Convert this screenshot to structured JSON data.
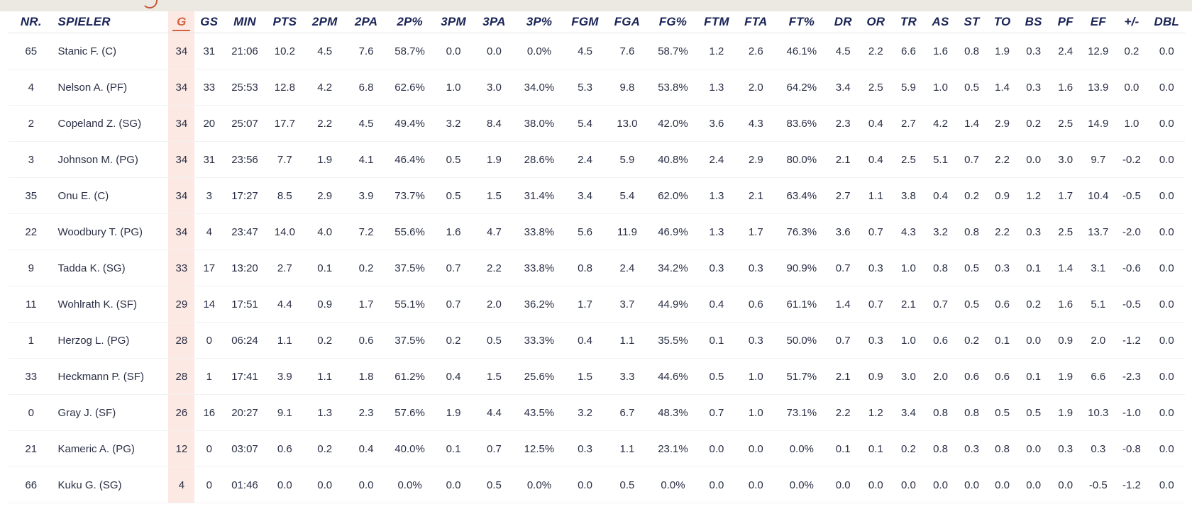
{
  "columns": [
    "NR.",
    "SPIELER",
    "G",
    "GS",
    "MIN",
    "PTS",
    "2PM",
    "2PA",
    "2P%",
    "3PM",
    "3PA",
    "3P%",
    "FGM",
    "FGA",
    "FG%",
    "FTM",
    "FTA",
    "FT%",
    "DR",
    "OR",
    "TR",
    "AS",
    "ST",
    "TO",
    "BS",
    "PF",
    "EF",
    "+/-",
    "DBL"
  ],
  "sorted_column": "G",
  "accent_color": "#d5623f",
  "highlight_color": "#fde9e3",
  "header_color": "#1a2456",
  "rows": [
    [
      "65",
      "Stanic F. (C)",
      "34",
      "31",
      "21:06",
      "10.2",
      "4.5",
      "7.6",
      "58.7%",
      "0.0",
      "0.0",
      "0.0%",
      "4.5",
      "7.6",
      "58.7%",
      "1.2",
      "2.6",
      "46.1%",
      "4.5",
      "2.2",
      "6.6",
      "1.6",
      "0.8",
      "1.9",
      "0.3",
      "2.4",
      "12.9",
      "0.2",
      "0.0"
    ],
    [
      "4",
      "Nelson A. (PF)",
      "34",
      "33",
      "25:53",
      "12.8",
      "4.2",
      "6.8",
      "62.6%",
      "1.0",
      "3.0",
      "34.0%",
      "5.3",
      "9.8",
      "53.8%",
      "1.3",
      "2.0",
      "64.2%",
      "3.4",
      "2.5",
      "5.9",
      "1.0",
      "0.5",
      "1.4",
      "0.3",
      "1.6",
      "13.9",
      "0.0",
      "0.0"
    ],
    [
      "2",
      "Copeland Z. (SG)",
      "34",
      "20",
      "25:07",
      "17.7",
      "2.2",
      "4.5",
      "49.4%",
      "3.2",
      "8.4",
      "38.0%",
      "5.4",
      "13.0",
      "42.0%",
      "3.6",
      "4.3",
      "83.6%",
      "2.3",
      "0.4",
      "2.7",
      "4.2",
      "1.4",
      "2.9",
      "0.2",
      "2.5",
      "14.9",
      "1.0",
      "0.0"
    ],
    [
      "3",
      "Johnson M. (PG)",
      "34",
      "31",
      "23:56",
      "7.7",
      "1.9",
      "4.1",
      "46.4%",
      "0.5",
      "1.9",
      "28.6%",
      "2.4",
      "5.9",
      "40.8%",
      "2.4",
      "2.9",
      "80.0%",
      "2.1",
      "0.4",
      "2.5",
      "5.1",
      "0.7",
      "2.2",
      "0.0",
      "3.0",
      "9.7",
      "-0.2",
      "0.0"
    ],
    [
      "35",
      "Onu E. (C)",
      "34",
      "3",
      "17:27",
      "8.5",
      "2.9",
      "3.9",
      "73.7%",
      "0.5",
      "1.5",
      "31.4%",
      "3.4",
      "5.4",
      "62.0%",
      "1.3",
      "2.1",
      "63.4%",
      "2.7",
      "1.1",
      "3.8",
      "0.4",
      "0.2",
      "0.9",
      "1.2",
      "1.7",
      "10.4",
      "-0.5",
      "0.0"
    ],
    [
      "22",
      "Woodbury T. (PG)",
      "34",
      "4",
      "23:47",
      "14.0",
      "4.0",
      "7.2",
      "55.6%",
      "1.6",
      "4.7",
      "33.8%",
      "5.6",
      "11.9",
      "46.9%",
      "1.3",
      "1.7",
      "76.3%",
      "3.6",
      "0.7",
      "4.3",
      "3.2",
      "0.8",
      "2.2",
      "0.3",
      "2.5",
      "13.7",
      "-2.0",
      "0.0"
    ],
    [
      "9",
      "Tadda K. (SG)",
      "33",
      "17",
      "13:20",
      "2.7",
      "0.1",
      "0.2",
      "37.5%",
      "0.7",
      "2.2",
      "33.8%",
      "0.8",
      "2.4",
      "34.2%",
      "0.3",
      "0.3",
      "90.9%",
      "0.7",
      "0.3",
      "1.0",
      "0.8",
      "0.5",
      "0.3",
      "0.1",
      "1.4",
      "3.1",
      "-0.6",
      "0.0"
    ],
    [
      "11",
      "Wohlrath K. (SF)",
      "29",
      "14",
      "17:51",
      "4.4",
      "0.9",
      "1.7",
      "55.1%",
      "0.7",
      "2.0",
      "36.2%",
      "1.7",
      "3.7",
      "44.9%",
      "0.4",
      "0.6",
      "61.1%",
      "1.4",
      "0.7",
      "2.1",
      "0.7",
      "0.5",
      "0.6",
      "0.2",
      "1.6",
      "5.1",
      "-0.5",
      "0.0"
    ],
    [
      "1",
      "Herzog L. (PG)",
      "28",
      "0",
      "06:24",
      "1.1",
      "0.2",
      "0.6",
      "37.5%",
      "0.2",
      "0.5",
      "33.3%",
      "0.4",
      "1.1",
      "35.5%",
      "0.1",
      "0.3",
      "50.0%",
      "0.7",
      "0.3",
      "1.0",
      "0.6",
      "0.2",
      "0.1",
      "0.0",
      "0.9",
      "2.0",
      "-1.2",
      "0.0"
    ],
    [
      "33",
      "Heckmann P. (SF)",
      "28",
      "1",
      "17:41",
      "3.9",
      "1.1",
      "1.8",
      "61.2%",
      "0.4",
      "1.5",
      "25.6%",
      "1.5",
      "3.3",
      "44.6%",
      "0.5",
      "1.0",
      "51.7%",
      "2.1",
      "0.9",
      "3.0",
      "2.0",
      "0.6",
      "0.6",
      "0.1",
      "1.9",
      "6.6",
      "-2.3",
      "0.0"
    ],
    [
      "0",
      "Gray J. (SF)",
      "26",
      "16",
      "20:27",
      "9.1",
      "1.3",
      "2.3",
      "57.6%",
      "1.9",
      "4.4",
      "43.5%",
      "3.2",
      "6.7",
      "48.3%",
      "0.7",
      "1.0",
      "73.1%",
      "2.2",
      "1.2",
      "3.4",
      "0.8",
      "0.8",
      "0.5",
      "0.5",
      "1.9",
      "10.3",
      "-1.0",
      "0.0"
    ],
    [
      "21",
      "Kameric A. (PG)",
      "12",
      "0",
      "03:07",
      "0.6",
      "0.2",
      "0.4",
      "40.0%",
      "0.1",
      "0.7",
      "12.5%",
      "0.3",
      "1.1",
      "23.1%",
      "0.0",
      "0.0",
      "0.0%",
      "0.1",
      "0.1",
      "0.2",
      "0.8",
      "0.3",
      "0.8",
      "0.0",
      "0.3",
      "0.3",
      "-0.8",
      "0.0"
    ],
    [
      "66",
      "Kuku G. (SG)",
      "4",
      "0",
      "01:46",
      "0.0",
      "0.0",
      "0.0",
      "0.0%",
      "0.0",
      "0.5",
      "0.0%",
      "0.0",
      "0.5",
      "0.0%",
      "0.0",
      "0.0",
      "0.0%",
      "0.0",
      "0.0",
      "0.0",
      "0.0",
      "0.0",
      "0.0",
      "0.0",
      "0.0",
      "-0.5",
      "-1.2",
      "0.0"
    ]
  ]
}
